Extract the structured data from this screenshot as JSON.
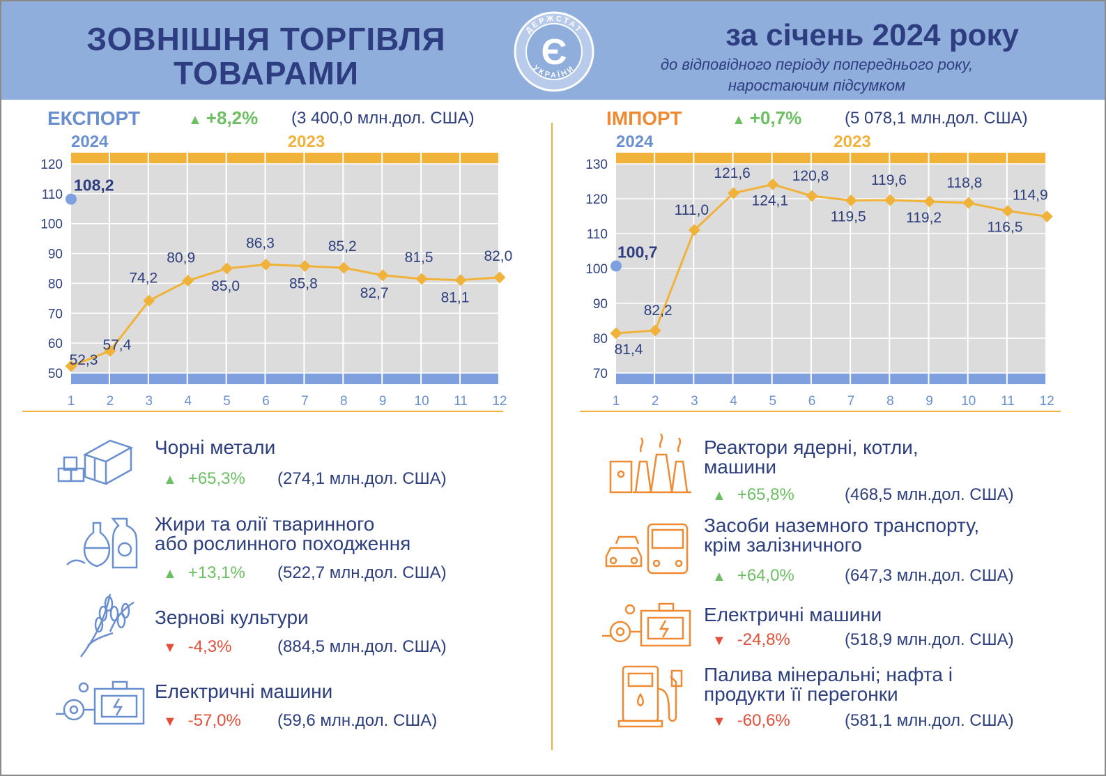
{
  "header": {
    "title_line1": "ЗОВНІШНЯ ТОРГІВЛЯ",
    "title_line2": "ТОВАРАМИ",
    "period": "за січень 2024 року",
    "subtitle_line1": "до відповідного періоду попереднього року,",
    "subtitle_line2": "наростаючим підсумком",
    "logo_text": "ДЕРЖСТАТ УКРАЇНИ",
    "logo_mark": "Є"
  },
  "export": {
    "label": "ЕКСПОРТ",
    "change": "+8,2%",
    "amount": "(3 400,0 млн.дол. США)"
  },
  "import": {
    "label": "ІМПОРТ",
    "change": "+0,7%",
    "amount": "(5 078,1 млн.дол. США)"
  },
  "colors": {
    "header_bg": "#8faedc",
    "navy": "#2e3d80",
    "export_label": "#6a8fd0",
    "import_label": "#ef8a33",
    "year_2023": "#f0b238",
    "line": "#f0b238",
    "plot_bg": "#dcdcdc",
    "blue_band": "#7fa0de",
    "up": "#6cbf62",
    "down": "#e3503a",
    "export_icon": "#6a8fd0",
    "import_icon": "#ef8a33"
  },
  "chart_data": [
    {
      "type": "line",
      "id": "export",
      "year_current": "2024",
      "year_previous": "2023",
      "x": [
        1,
        2,
        3,
        4,
        5,
        6,
        7,
        8,
        9,
        10,
        11,
        12
      ],
      "ylim": [
        50,
        120
      ],
      "yticks": [
        50,
        60,
        70,
        80,
        90,
        100,
        110,
        120
      ],
      "series": [
        {
          "values": [
            52.3,
            57.4,
            74.2,
            80.9,
            85.0,
            86.3,
            85.8,
            85.2,
            82.7,
            81.5,
            81.1,
            82.0
          ],
          "labels": [
            "52,3",
            "57,4",
            "74,2",
            "80,9",
            "85,0",
            "86,3",
            "85,8",
            "85,2",
            "82,7",
            "81,5",
            "81,1",
            "82,0"
          ]
        }
      ],
      "current_point": {
        "x": 1,
        "value": 108.2,
        "label": "108,2"
      },
      "grid": true
    },
    {
      "type": "line",
      "id": "import",
      "year_current": "2024",
      "year_previous": "2023",
      "x": [
        1,
        2,
        3,
        4,
        5,
        6,
        7,
        8,
        9,
        10,
        11,
        12
      ],
      "ylim": [
        70,
        130
      ],
      "yticks": [
        70,
        80,
        90,
        100,
        110,
        120,
        130
      ],
      "series": [
        {
          "values": [
            81.4,
            82.2,
            111.0,
            121.6,
            124.1,
            120.8,
            119.5,
            119.6,
            119.2,
            118.8,
            116.5,
            114.9
          ],
          "labels": [
            "81,4",
            "82,2",
            "111,0",
            "121,6",
            "124,1",
            "120,8",
            "119,5",
            "119,6",
            "119,2",
            "118,8",
            "116,5",
            "114,9"
          ]
        }
      ],
      "current_point": {
        "x": 1,
        "value": 100.7,
        "label": "100,7"
      },
      "grid": true
    }
  ],
  "export_items": [
    {
      "title": [
        "Чорні метали"
      ],
      "direction": "up",
      "change": "+65,3%",
      "amount": "(274,1 млн.дол. США)",
      "icon": "steel-beams-icon"
    },
    {
      "title": [
        "Жири та олії тваринного",
        "або рослинного походження"
      ],
      "direction": "up",
      "change": "+13,1%",
      "amount": "(522,7 млн.дол. США)",
      "icon": "oil-bottles-icon"
    },
    {
      "title": [
        "Зернові культури"
      ],
      "direction": "down",
      "change": "-4,3%",
      "amount": "(884,5 млн.дол. США)",
      "icon": "wheat-icon"
    },
    {
      "title": [
        "Електричні машини"
      ],
      "direction": "down",
      "change": "-57,0%",
      "amount": "(59,6 млн.дол. США)",
      "icon": "electric-machine-icon"
    }
  ],
  "import_items": [
    {
      "title": [
        "Реактори ядерні, котли,",
        "машини"
      ],
      "direction": "up",
      "change": "+65,8%",
      "amount": "(468,5 млн.дол. США)",
      "icon": "power-plant-icon"
    },
    {
      "title": [
        "Засоби наземного транспорту,",
        "крім залізничного"
      ],
      "direction": "up",
      "change": "+64,0%",
      "amount": "(647,3 млн.дол. США)",
      "icon": "vehicles-icon"
    },
    {
      "title": [
        "Електричні машини"
      ],
      "direction": "down",
      "change": "-24,8%",
      "amount": "(518,9 млн.дол. США)",
      "icon": "electric-machine-icon"
    },
    {
      "title": [
        "Палива мінеральні; нафта і",
        "продукти її перегонки"
      ],
      "direction": "down",
      "change": "-60,6%",
      "amount": "(581,1 млн.дол. США)",
      "icon": "fuel-pump-icon"
    }
  ],
  "triangles": {
    "up": "▲",
    "down": "▼"
  }
}
